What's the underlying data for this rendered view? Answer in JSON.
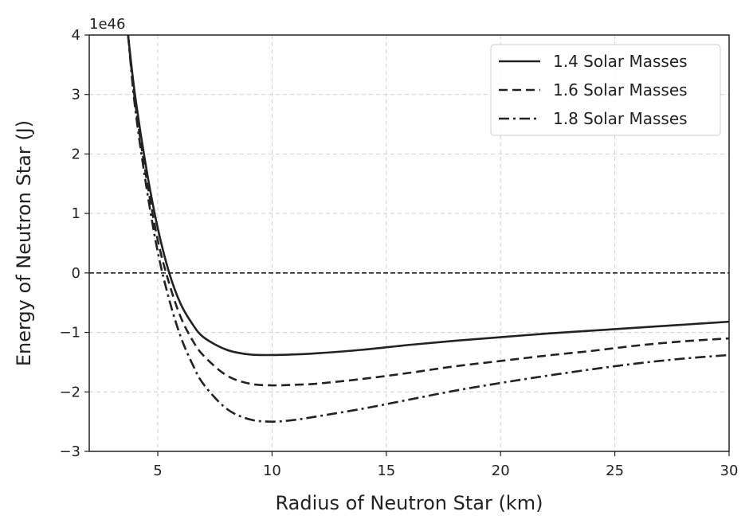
{
  "chart_data": {
    "type": "line",
    "xlabel": "Radius of Neutron Star (km)",
    "ylabel": "Energy of Neutron Star (J)",
    "y_offset_label": "1e46",
    "xlim": [
      2,
      30
    ],
    "ylim": [
      -3,
      4
    ],
    "x_ticks": [
      5,
      10,
      15,
      20,
      25,
      30
    ],
    "y_ticks": [
      -3,
      -2,
      -1,
      0,
      1,
      2,
      3,
      4
    ],
    "grid": true,
    "grid_style": "dashed",
    "legend_position": "upper right",
    "reference_line": {
      "y": 0,
      "style": "dashed"
    },
    "x": [
      3.7,
      4,
      4.5,
      5,
      5.5,
      6,
      6.5,
      7,
      8,
      9,
      10,
      11,
      12,
      14,
      16,
      18,
      20,
      22,
      24,
      26,
      28,
      30
    ],
    "series": [
      {
        "name": "1.4 Solar Masses",
        "style": "solid",
        "values": [
          4.0,
          3.0,
          1.75,
          0.75,
          0.0,
          -0.52,
          -0.85,
          -1.08,
          -1.29,
          -1.37,
          -1.38,
          -1.37,
          -1.35,
          -1.29,
          -1.21,
          -1.14,
          -1.08,
          -1.02,
          -0.97,
          -0.92,
          -0.87,
          -0.82
        ]
      },
      {
        "name": "1.6 Solar Masses",
        "style": "dashed",
        "values": [
          4.0,
          2.9,
          1.6,
          0.55,
          -0.18,
          -0.74,
          -1.12,
          -1.39,
          -1.72,
          -1.86,
          -1.89,
          -1.88,
          -1.86,
          -1.78,
          -1.68,
          -1.57,
          -1.48,
          -1.39,
          -1.31,
          -1.22,
          -1.15,
          -1.1
        ]
      },
      {
        "name": "1.8 Solar Masses",
        "style": "dashdot",
        "values": [
          4.0,
          2.8,
          1.45,
          0.35,
          -0.45,
          -1.07,
          -1.52,
          -1.87,
          -2.28,
          -2.46,
          -2.5,
          -2.47,
          -2.41,
          -2.28,
          -2.13,
          -1.98,
          -1.85,
          -1.73,
          -1.62,
          -1.52,
          -1.44,
          -1.38
        ]
      }
    ]
  }
}
